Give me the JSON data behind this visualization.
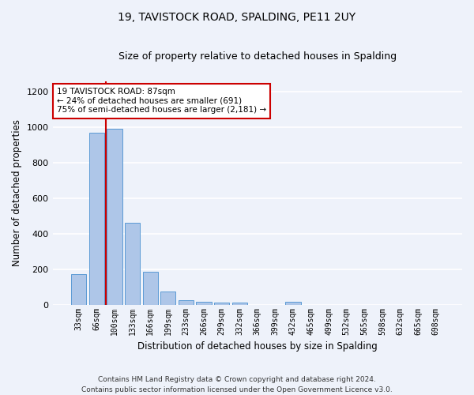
{
  "title": "19, TAVISTOCK ROAD, SPALDING, PE11 2UY",
  "subtitle": "Size of property relative to detached houses in Spalding",
  "xlabel": "Distribution of detached houses by size in Spalding",
  "ylabel": "Number of detached properties",
  "categories": [
    "33sqm",
    "66sqm",
    "100sqm",
    "133sqm",
    "166sqm",
    "199sqm",
    "233sqm",
    "266sqm",
    "299sqm",
    "332sqm",
    "366sqm",
    "399sqm",
    "432sqm",
    "465sqm",
    "499sqm",
    "532sqm",
    "565sqm",
    "598sqm",
    "632sqm",
    "665sqm",
    "698sqm"
  ],
  "values": [
    170,
    970,
    990,
    460,
    185,
    75,
    25,
    18,
    13,
    10,
    0,
    0,
    18,
    0,
    0,
    0,
    0,
    0,
    0,
    0,
    0
  ],
  "bar_color": "#aec6e8",
  "bar_edge_color": "#5b9bd5",
  "vline_color": "#cc0000",
  "annotation_text": "19 TAVISTOCK ROAD: 87sqm\n← 24% of detached houses are smaller (691)\n75% of semi-detached houses are larger (2,181) →",
  "annotation_box_color": "#ffffff",
  "annotation_box_edge_color": "#cc0000",
  "ylim": [
    0,
    1260
  ],
  "yticks": [
    0,
    200,
    400,
    600,
    800,
    1000,
    1200
  ],
  "background_color": "#eef2fa",
  "grid_color": "#ffffff",
  "footer": "Contains HM Land Registry data © Crown copyright and database right 2024.\nContains public sector information licensed under the Open Government Licence v3.0.",
  "title_fontsize": 10,
  "subtitle_fontsize": 9,
  "xlabel_fontsize": 8.5,
  "ylabel_fontsize": 8.5,
  "tick_fontsize": 7,
  "footer_fontsize": 6.5
}
